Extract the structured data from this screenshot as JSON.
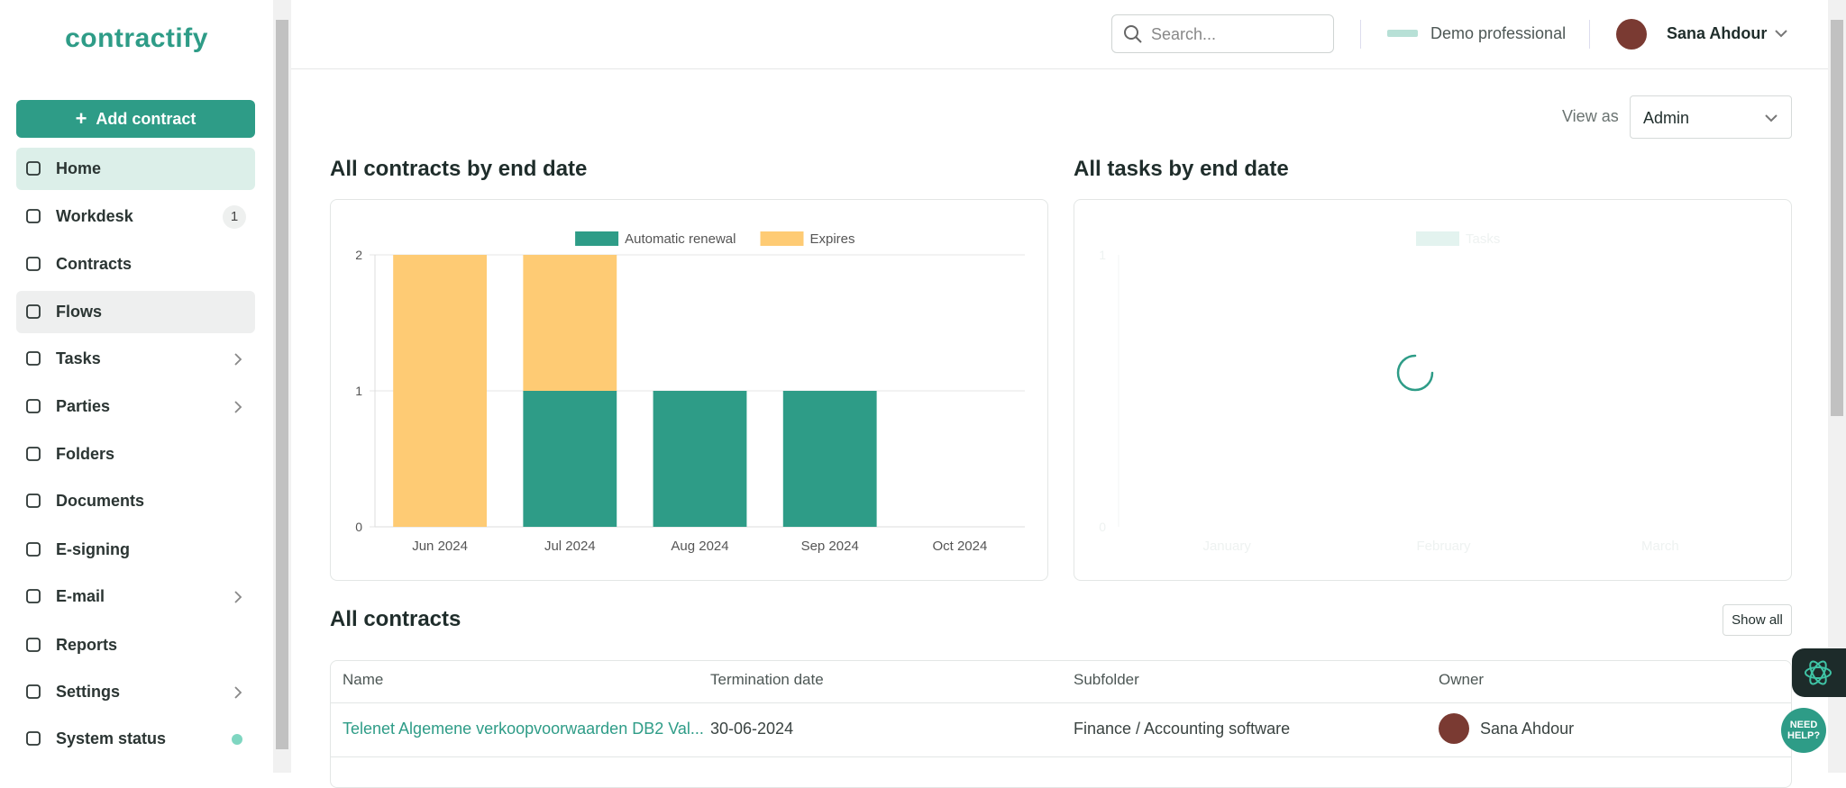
{
  "sidebar": {
    "logo": "contractify",
    "add_button": "Add contract",
    "nav": [
      {
        "label": "Home"
      },
      {
        "label": "Workdesk",
        "badge": "1"
      },
      {
        "label": "Contracts"
      },
      {
        "label": "Flows"
      },
      {
        "label": "Tasks",
        "arrow": true
      },
      {
        "label": "Parties",
        "arrow": true
      },
      {
        "label": "Folders"
      },
      {
        "label": "Documents"
      },
      {
        "label": "E-signing"
      },
      {
        "label": "E-mail",
        "arrow": true
      },
      {
        "label": "Reports"
      },
      {
        "label": "Settings",
        "arrow": true
      },
      {
        "label": "System status",
        "status": true
      }
    ]
  },
  "header": {
    "search_placeholder": "Search...",
    "organization": "Demo professional",
    "user": "Sana Ahdour"
  },
  "view_as": {
    "label": "View as",
    "value": "Admin"
  },
  "chart_data": [
    {
      "type": "bar",
      "stacked": true,
      "title": "All contracts by end date",
      "categories": [
        "Jun 2024",
        "Jul 2024",
        "Aug 2024",
        "Sep 2024",
        "Oct 2024"
      ],
      "series": [
        {
          "name": "Automatic renewal",
          "color": "#2e9c87",
          "values": [
            0,
            1,
            1,
            1,
            0
          ]
        },
        {
          "name": "Expires",
          "color": "#fecb74",
          "values": [
            2,
            1,
            0,
            0,
            0
          ]
        }
      ],
      "ylim": [
        0,
        2
      ],
      "yticks": [
        0,
        1,
        2
      ],
      "grid": true
    },
    {
      "type": "bar",
      "stacked": true,
      "loading": true,
      "title": "All tasks by end date",
      "categories": [
        "January",
        "February",
        "March"
      ],
      "series": [
        {
          "name": "Tasks",
          "color": "#e3f3ef",
          "values": [
            null,
            null,
            null
          ]
        }
      ],
      "ylim": [
        0,
        1
      ],
      "yticks": [
        0,
        1
      ],
      "grid": false
    }
  ],
  "table": {
    "title": "All contracts",
    "show_all": "Show all",
    "columns": [
      "Name",
      "Termination date",
      "Subfolder",
      "Owner"
    ],
    "rows": [
      [
        "Telenet Algemene verkoopvoorwaarden DB2 Val...",
        "30-06-2024",
        "Finance / Accounting software",
        "Sana Ahdour"
      ]
    ]
  },
  "help": "NEED HELP?"
}
